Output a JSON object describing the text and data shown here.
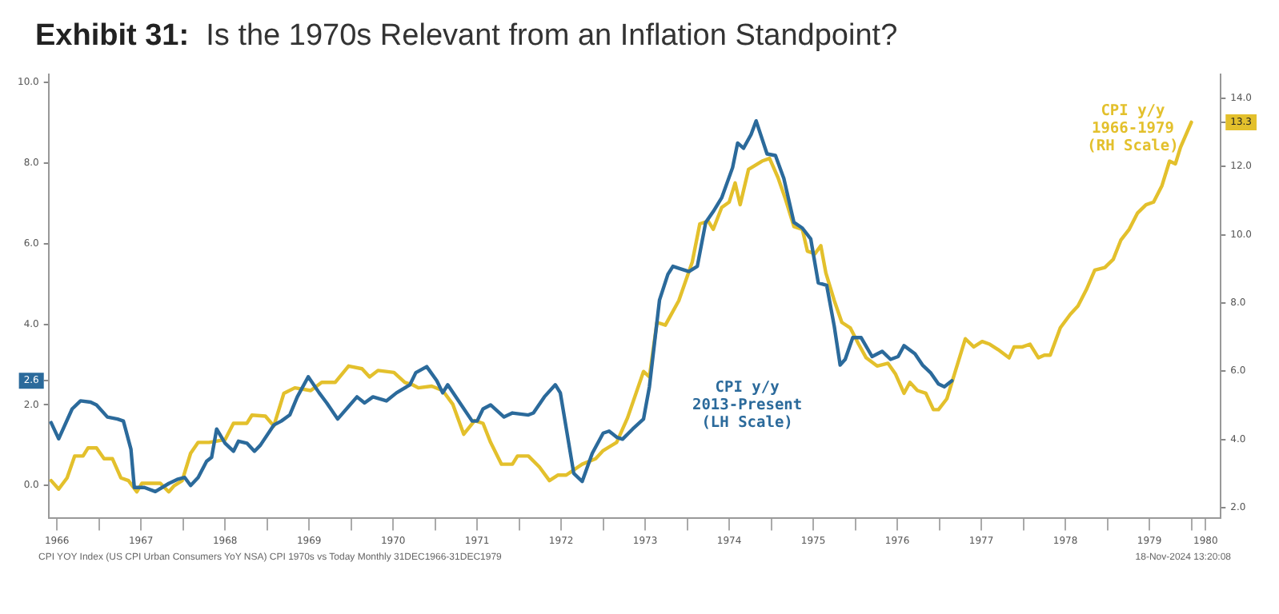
{
  "chart_data": {
    "type": "line",
    "title": "Exhibit 31:  Is the 1970s Relevant from an Inflation Standpoint?",
    "xlim": [
      1966.4,
      1980.35
    ],
    "xticks": [
      {
        "value": 1966.5,
        "label": "1966"
      },
      {
        "value": 1967,
        "label": null
      },
      {
        "value": 1967.5,
        "label": "1967"
      },
      {
        "value": 1968,
        "label": null
      },
      {
        "value": 1968.5,
        "label": "1968"
      },
      {
        "value": 1969,
        "label": null
      },
      {
        "value": 1969.5,
        "label": "1969"
      },
      {
        "value": 1970,
        "label": null
      },
      {
        "value": 1970.5,
        "label": "1970"
      },
      {
        "value": 1971,
        "label": null
      },
      {
        "value": 1971.5,
        "label": "1971"
      },
      {
        "value": 1972,
        "label": null
      },
      {
        "value": 1972.5,
        "label": "1972"
      },
      {
        "value": 1973,
        "label": null
      },
      {
        "value": 1973.5,
        "label": "1973"
      },
      {
        "value": 1974,
        "label": null
      },
      {
        "value": 1974.5,
        "label": "1974"
      },
      {
        "value": 1975,
        "label": null
      },
      {
        "value": 1975.5,
        "label": "1975"
      },
      {
        "value": 1976,
        "label": null
      },
      {
        "value": 1976.5,
        "label": "1976"
      },
      {
        "value": 1977,
        "label": null
      },
      {
        "value": 1977.5,
        "label": "1977"
      },
      {
        "value": 1978,
        "label": null
      },
      {
        "value": 1978.5,
        "label": "1978"
      },
      {
        "value": 1979,
        "label": null
      },
      {
        "value": 1979.5,
        "label": "1979"
      },
      {
        "value": 1980,
        "label": null
      },
      {
        "value": 1980.17,
        "label": "1980"
      }
    ],
    "ylim": [
      -0.8,
      10.2
    ],
    "yticks": [
      {
        "value": 0,
        "label": "0.0"
      },
      {
        "value": 2,
        "label": "2.0"
      },
      {
        "value": 2.6,
        "label": "2.6"
      },
      {
        "value": 4,
        "label": "4.0"
      },
      {
        "value": 6,
        "label": "6.0"
      },
      {
        "value": 8,
        "label": "8.0"
      },
      {
        "value": 10,
        "label": "10.0"
      }
    ],
    "y2lim": [
      1.7,
      14.7
    ],
    "y2ticks": [
      {
        "value": 2,
        "label": "2.0"
      },
      {
        "value": 4,
        "label": "4.0"
      },
      {
        "value": 6,
        "label": "6.0"
      },
      {
        "value": 8,
        "label": "8.0"
      },
      {
        "value": 10,
        "label": "10.0"
      },
      {
        "value": 12,
        "label": "12.0"
      },
      {
        "value": 13.3,
        "label": "13.3"
      },
      {
        "value": 14,
        "label": "14.0"
      }
    ],
    "grid": false,
    "legend": false,
    "marker": "none",
    "line_style": "solid",
    "series": [
      {
        "name": "CPI y/y\n2013-Present\n(LH Scale)",
        "color": "#2b6a9b",
        "axis": "y",
        "x": [
          1966.43,
          1966.52,
          1966.68,
          1966.78,
          1966.9,
          1966.97,
          1967.1,
          1967.22,
          1967.29,
          1967.38,
          1967.42,
          1967.54,
          1967.67,
          1967.83,
          1967.93,
          1968.02,
          1968.09,
          1968.18,
          1968.28,
          1968.34,
          1968.4,
          1968.5,
          1968.6,
          1968.66,
          1968.76,
          1968.85,
          1968.92,
          1969.08,
          1969.17,
          1969.27,
          1969.36,
          1969.49,
          1969.62,
          1969.71,
          1969.84,
          1970.07,
          1970.16,
          1970.26,
          1970.42,
          1970.54,
          1970.7,
          1970.77,
          1970.9,
          1971.02,
          1971.09,
          1971.15,
          1971.44,
          1971.5,
          1971.57,
          1971.66,
          1971.82,
          1971.92,
          1972.11,
          1972.17,
          1972.3,
          1972.43,
          1972.49,
          1972.65,
          1972.75,
          1972.87,
          1973.0,
          1973.07,
          1973.16,
          1973.23,
          1973.35,
          1973.48,
          1973.55,
          1973.67,
          1973.77,
          1973.83,
          1973.93,
          1974.02,
          1974.12,
          1974.22,
          1974.31,
          1974.41,
          1974.54,
          1974.6,
          1974.67,
          1974.76,
          1974.82,
          1974.95,
          1975.05,
          1975.15,
          1975.27,
          1975.37,
          1975.47,
          1975.56,
          1975.66,
          1975.75,
          1975.82,
          1975.88,
          1975.97,
          1976.07,
          1976.2,
          1976.32,
          1976.42,
          1976.51,
          1976.58,
          1976.71,
          1976.8,
          1976.9,
          1976.99,
          1977.06,
          1977.15
        ],
        "values": [
          1.56,
          1.16,
          1.9,
          2.1,
          2.07,
          2.0,
          1.7,
          1.65,
          1.6,
          0.9,
          -0.05,
          -0.05,
          -0.15,
          0.05,
          0.15,
          0.2,
          0.0,
          0.2,
          0.6,
          0.7,
          1.4,
          1.05,
          0.85,
          1.1,
          1.05,
          0.85,
          1.0,
          1.5,
          1.6,
          1.75,
          2.2,
          2.7,
          2.3,
          2.05,
          1.65,
          2.2,
          2.05,
          2.2,
          2.1,
          2.3,
          2.5,
          2.8,
          2.95,
          2.6,
          2.3,
          2.5,
          1.6,
          1.6,
          1.9,
          2.0,
          1.7,
          1.8,
          1.75,
          1.8,
          2.2,
          2.5,
          2.3,
          0.3,
          0.1,
          0.8,
          1.3,
          1.35,
          1.2,
          1.15,
          1.4,
          1.65,
          2.45,
          4.6,
          5.24,
          5.44,
          5.37,
          5.31,
          5.44,
          6.53,
          6.8,
          7.14,
          7.89,
          8.5,
          8.37,
          8.71,
          9.05,
          8.23,
          8.19,
          7.62,
          6.53,
          6.39,
          6.12,
          5.03,
          4.97,
          3.95,
          2.99,
          3.13,
          3.67,
          3.67,
          3.2,
          3.33,
          3.13,
          3.2,
          3.47,
          3.27,
          2.99,
          2.79,
          2.52,
          2.45,
          2.6
        ]
      },
      {
        "name": "CPI y/y\n1966-1979\n(RH Scale)",
        "color": "#e3c02c",
        "axis": "y2",
        "x": [
          1966.43,
          1966.52,
          1966.62,
          1966.71,
          1966.81,
          1966.87,
          1966.97,
          1967.06,
          1967.16,
          1967.26,
          1967.35,
          1967.45,
          1967.51,
          1967.73,
          1967.83,
          1967.89,
          1967.99,
          1968.09,
          1968.18,
          1968.31,
          1968.5,
          1968.6,
          1968.76,
          1968.82,
          1968.98,
          1969.08,
          1969.2,
          1969.33,
          1969.52,
          1969.65,
          1969.81,
          1969.97,
          1970.13,
          1970.22,
          1970.32,
          1970.51,
          1970.64,
          1970.74,
          1970.8,
          1970.96,
          1971.09,
          1971.21,
          1971.34,
          1971.47,
          1971.57,
          1971.66,
          1971.79,
          1971.92,
          1971.98,
          1972.11,
          1972.24,
          1972.36,
          1972.46,
          1972.56,
          1972.75,
          1972.91,
          1973.0,
          1973.16,
          1973.29,
          1973.48,
          1973.55,
          1973.64,
          1973.74,
          1973.9,
          1974.06,
          1974.15,
          1974.25,
          1974.31,
          1974.41,
          1974.5,
          1974.57,
          1974.63,
          1974.73,
          1974.89,
          1974.98,
          1975.08,
          1975.17,
          1975.27,
          1975.37,
          1975.43,
          1975.52,
          1975.59,
          1975.65,
          1975.75,
          1975.84,
          1975.94,
          1976.04,
          1976.13,
          1976.26,
          1976.39,
          1976.48,
          1976.58,
          1976.65,
          1976.74,
          1976.84,
          1976.93,
          1976.99,
          1977.09,
          1977.19,
          1977.31,
          1977.41,
          1977.51,
          1977.6,
          1977.7,
          1977.83,
          1977.89,
          1977.99,
          1978.08,
          1978.18,
          1978.25,
          1978.32,
          1978.44,
          1978.56,
          1978.65,
          1978.75,
          1978.85,
          1978.97,
          1979.07,
          1979.16,
          1979.26,
          1979.36,
          1979.46,
          1979.55,
          1979.65,
          1979.74,
          1979.81,
          1979.87,
          1980.0
        ],
        "values": [
          2.79,
          2.54,
          2.87,
          3.51,
          3.51,
          3.75,
          3.75,
          3.43,
          3.43,
          2.87,
          2.79,
          2.46,
          2.71,
          2.71,
          2.46,
          2.63,
          2.79,
          3.59,
          3.91,
          3.91,
          3.99,
          4.47,
          4.47,
          4.71,
          4.68,
          4.39,
          5.35,
          5.51,
          5.43,
          5.67,
          5.67,
          6.15,
          6.07,
          5.83,
          6.02,
          5.96,
          5.67,
          5.59,
          5.51,
          5.56,
          5.43,
          5.03,
          4.15,
          4.55,
          4.47,
          3.91,
          3.27,
          3.27,
          3.51,
          3.51,
          3.19,
          2.79,
          2.95,
          2.95,
          3.27,
          3.43,
          3.67,
          3.91,
          4.63,
          5.99,
          5.83,
          7.43,
          7.35,
          8.07,
          9.2,
          10.32,
          10.4,
          10.16,
          10.8,
          10.96,
          11.52,
          10.88,
          11.92,
          12.16,
          12.24,
          11.68,
          11.04,
          10.24,
          10.16,
          9.52,
          9.44,
          9.68,
          8.88,
          8.07,
          7.43,
          7.27,
          6.79,
          6.39,
          6.15,
          6.23,
          5.91,
          5.35,
          5.67,
          5.43,
          5.35,
          4.87,
          4.87,
          5.19,
          5.99,
          6.95,
          6.71,
          6.87,
          6.79,
          6.63,
          6.39,
          6.71,
          6.71,
          6.79,
          6.39,
          6.47,
          6.47,
          7.27,
          7.67,
          7.91,
          8.39,
          8.96,
          9.04,
          9.28,
          9.84,
          10.16,
          10.64,
          10.88,
          10.96,
          11.44,
          12.16,
          12.08,
          12.56,
          13.3
        ]
      }
    ],
    "annotations": [
      "CPI YOY Index (US CPI Urban Consumers YoY NSA) CPI 1970s vs Today  Monthly 31DEC1966-31DEC1979",
      "18-Nov-2024 13:20:08"
    ]
  }
}
